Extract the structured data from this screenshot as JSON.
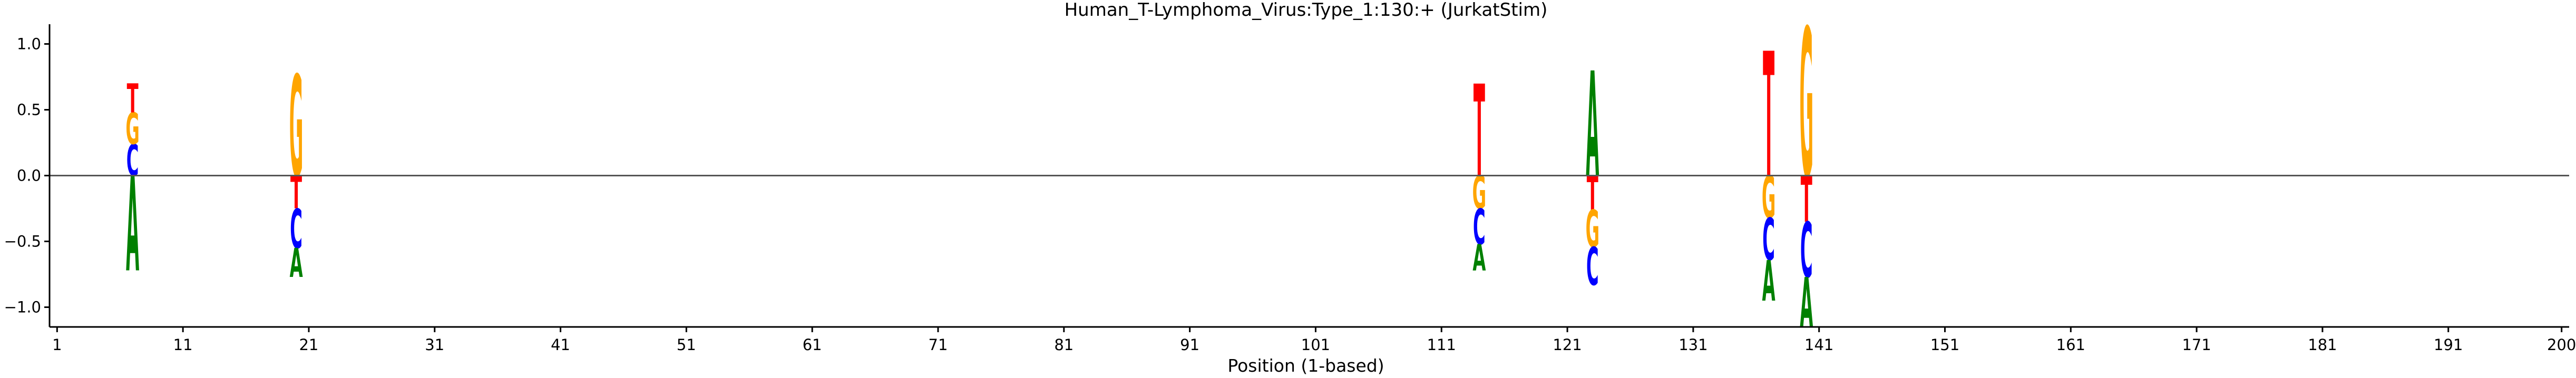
{
  "chart_data": {
    "type": "sequence-logo",
    "title": "Human_T-Lymphoma_Virus:Type_1:130:+  (JurkatStim)",
    "xlabel": "Position (1-based)",
    "ylabel": "",
    "xlim": [
      1,
      200
    ],
    "ylim": [
      -1.15,
      1.15
    ],
    "x_ticks": [
      1,
      11,
      21,
      31,
      41,
      51,
      61,
      71,
      81,
      91,
      101,
      111,
      121,
      131,
      141,
      151,
      161,
      171,
      181,
      191,
      200
    ],
    "y_ticks": [
      -1.0,
      -0.5,
      0.0,
      0.5,
      1.0
    ],
    "y_tick_labels": [
      "−1.0",
      "−0.5",
      "0.0",
      "0.5",
      "1.0"
    ],
    "baseline": 0,
    "colors": {
      "A": "#008000",
      "C": "#0000ff",
      "G": "#ffa500",
      "T": "#ff0000"
    },
    "positions": [
      {
        "pos": 7,
        "above": [
          {
            "base": "C",
            "height": 0.24
          },
          {
            "base": "G",
            "height": 0.24
          },
          {
            "base": "T",
            "height": 0.22
          }
        ],
        "below": [
          {
            "base": "A",
            "height": 0.72
          }
        ]
      },
      {
        "pos": 20,
        "above": [
          {
            "base": "G",
            "height": 0.77
          }
        ],
        "below": [
          {
            "base": "T",
            "height": 0.25
          },
          {
            "base": "C",
            "height": 0.3
          },
          {
            "base": "A",
            "height": 0.22
          }
        ]
      },
      {
        "pos": 114,
        "above": [
          {
            "base": "T",
            "height": 0.7
          }
        ],
        "below": [
          {
            "base": "G",
            "height": 0.25
          },
          {
            "base": "C",
            "height": 0.27
          },
          {
            "base": "A",
            "height": 0.2
          }
        ]
      },
      {
        "pos": 123,
        "above": [
          {
            "base": "A",
            "height": 0.8
          }
        ],
        "below": [
          {
            "base": "T",
            "height": 0.26
          },
          {
            "base": "G",
            "height": 0.28
          },
          {
            "base": "C",
            "height": 0.29
          }
        ]
      },
      {
        "pos": 137,
        "above": [
          {
            "base": "T",
            "height": 0.95
          }
        ],
        "below": [
          {
            "base": "G",
            "height": 0.32
          },
          {
            "base": "C",
            "height": 0.32
          },
          {
            "base": "A",
            "height": 0.31
          }
        ]
      },
      {
        "pos": 140,
        "above": [
          {
            "base": "G",
            "height": 1.13
          }
        ],
        "below": [
          {
            "base": "T",
            "height": 0.35
          },
          {
            "base": "C",
            "height": 0.42
          },
          {
            "base": "A",
            "height": 0.38
          }
        ]
      }
    ]
  }
}
